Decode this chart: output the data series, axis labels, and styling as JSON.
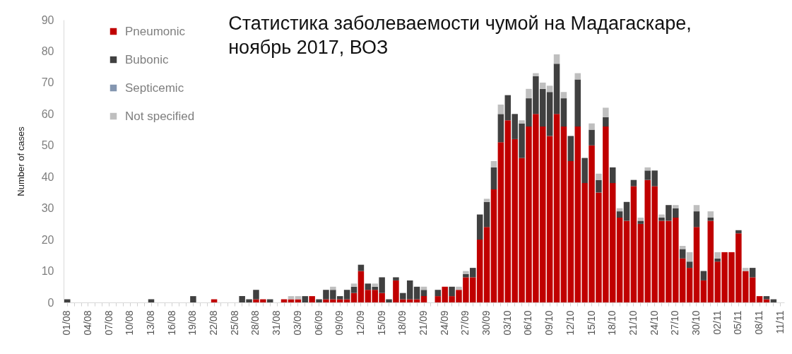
{
  "chart_data": {
    "type": "bar",
    "title": "Статистика заболеваемости чумой на Мадагаскаре, ноябрь 2017, ВОЗ",
    "ylabel": "Number of cases",
    "categories": [
      "01/08",
      null,
      null,
      "04/08",
      null,
      null,
      "07/08",
      null,
      null,
      "10/08",
      null,
      null,
      "13/08",
      null,
      null,
      "16/08",
      null,
      null,
      "19/08",
      null,
      null,
      "22/08",
      null,
      null,
      "25/08",
      null,
      null,
      "28/08",
      null,
      null,
      "31/08",
      null,
      null,
      "03/09",
      null,
      null,
      "06/09",
      null,
      null,
      "09/09",
      null,
      null,
      "12/09",
      null,
      null,
      "15/09",
      null,
      null,
      "18/09",
      null,
      null,
      "21/09",
      null,
      null,
      "24/09",
      null,
      null,
      "27/09",
      null,
      null,
      "30/09",
      null,
      null,
      "03/10",
      null,
      null,
      "06/10",
      null,
      null,
      "09/10",
      null,
      null,
      "12/10",
      null,
      null,
      "15/10",
      null,
      null,
      "18/10",
      null,
      null,
      "21/10",
      null,
      null,
      "24/10",
      null,
      null,
      "27/10",
      null,
      null,
      "30/10",
      null,
      null,
      "02/11",
      null,
      null,
      "05/11",
      null,
      null,
      "08/11",
      null,
      null,
      "11/11"
    ],
    "series": [
      {
        "name": "Pneumonic",
        "color": "#c00000",
        "values": [
          0,
          0,
          0,
          0,
          0,
          0,
          0,
          0,
          0,
          0,
          0,
          0,
          0,
          0,
          0,
          0,
          0,
          0,
          0,
          0,
          0,
          1,
          0,
          0,
          0,
          0,
          0,
          1,
          1,
          0,
          0,
          1,
          1,
          1,
          0,
          2,
          0,
          1,
          1,
          1,
          1,
          3,
          10,
          4,
          4,
          3,
          0,
          7,
          1,
          1,
          1,
          2,
          0,
          2,
          5,
          2,
          4,
          8,
          8,
          20,
          24,
          36,
          51,
          58,
          52,
          46,
          56,
          60,
          56,
          53,
          60,
          56,
          45,
          56,
          38,
          50,
          35,
          56,
          38,
          27,
          26,
          37,
          25,
          39,
          37,
          26,
          26,
          27,
          14,
          11,
          24,
          7,
          26,
          13,
          16,
          16,
          22,
          10,
          8,
          2,
          1,
          0,
          0
        ]
      },
      {
        "name": "Bubonic",
        "color": "#404040",
        "values": [
          1,
          0,
          0,
          0,
          0,
          0,
          0,
          0,
          0,
          0,
          0,
          0,
          1,
          0,
          0,
          0,
          0,
          0,
          2,
          0,
          0,
          0,
          0,
          0,
          0,
          2,
          1,
          3,
          0,
          1,
          0,
          0,
          0,
          0,
          2,
          0,
          1,
          3,
          3,
          1,
          3,
          2,
          2,
          2,
          1,
          5,
          1,
          1,
          2,
          6,
          4,
          2,
          0,
          2,
          0,
          3,
          0,
          1,
          3,
          8,
          8,
          7,
          9,
          8,
          8,
          11,
          9,
          12,
          12,
          14,
          16,
          9,
          8,
          15,
          8,
          5,
          4,
          3,
          5,
          2,
          6,
          2,
          1,
          3,
          5,
          1,
          5,
          3,
          3,
          2,
          5,
          3,
          1,
          1,
          0,
          0,
          1,
          0,
          3,
          0,
          1,
          1,
          0
        ]
      },
      {
        "name": "Septicemic",
        "color": "#8496b0",
        "values": [
          0,
          0,
          0,
          0,
          0,
          0,
          0,
          0,
          0,
          0,
          0,
          0,
          0,
          0,
          0,
          0,
          0,
          0,
          0,
          0,
          0,
          0,
          0,
          0,
          0,
          0,
          0,
          0,
          0,
          0,
          0,
          0,
          0,
          0,
          0,
          0,
          0,
          0,
          0,
          0,
          0,
          0,
          0,
          0,
          0,
          0,
          0,
          0,
          0,
          0,
          0,
          0,
          0,
          0,
          0,
          0,
          0,
          0,
          0,
          0,
          0,
          0,
          0,
          0,
          0,
          0,
          0,
          0,
          0,
          0,
          0,
          0,
          0,
          0,
          0,
          0,
          0,
          0,
          0,
          0,
          0,
          0,
          0,
          0,
          0,
          0,
          0,
          0,
          0,
          0,
          0,
          0,
          0,
          0,
          0,
          0,
          0,
          0,
          0,
          0,
          0,
          0,
          0
        ]
      },
      {
        "name": "Not specified",
        "color": "#bfbfbf",
        "values": [
          0,
          0,
          0,
          0,
          0,
          0,
          0,
          0,
          0,
          0,
          0,
          0,
          0,
          0,
          0,
          0,
          0,
          0,
          0,
          0,
          0,
          0,
          0,
          0,
          0,
          0,
          0,
          0,
          0,
          0,
          0,
          0,
          1,
          1,
          0,
          0,
          0,
          0,
          1,
          0,
          0,
          1,
          0,
          0,
          1,
          0,
          0,
          0,
          0,
          0,
          0,
          1,
          0,
          0,
          0,
          0,
          1,
          1,
          0,
          0,
          1,
          2,
          3,
          0,
          0,
          1,
          3,
          1,
          2,
          2,
          3,
          2,
          0,
          2,
          0,
          2,
          2,
          3,
          0,
          1,
          0,
          0,
          1,
          1,
          0,
          1,
          0,
          1,
          1,
          3,
          2,
          0,
          2,
          2,
          0,
          0,
          0,
          1,
          0,
          0,
          0,
          0,
          0
        ]
      }
    ],
    "stacked": true,
    "ylim": [
      0,
      90
    ],
    "yticks": [
      0,
      10,
      20,
      30,
      40,
      50,
      60,
      70,
      80,
      90
    ],
    "legend": "top left"
  }
}
